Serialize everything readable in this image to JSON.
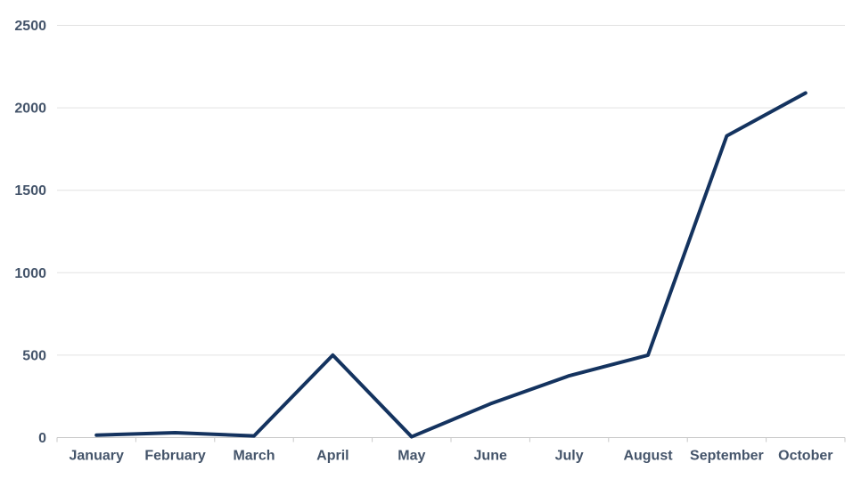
{
  "chart_data": {
    "type": "line",
    "categories": [
      "January",
      "February",
      "March",
      "April",
      "May",
      "June",
      "July",
      "August",
      "September",
      "October"
    ],
    "series": [
      {
        "name": "monthly-values",
        "values": [
          15,
          30,
          10,
          500,
          5,
          205,
          375,
          500,
          1830,
          2090
        ]
      }
    ],
    "title": "",
    "xlabel": "",
    "ylabel": "",
    "ylim": [
      0,
      2500
    ],
    "yticks": [
      0,
      500,
      1000,
      1500,
      2000,
      2500
    ],
    "grid": true,
    "legend": false,
    "colors": {
      "line": "#14335f",
      "labels": "#44546a",
      "gridline": "#e2e2e2",
      "axis": "#c8c8c8",
      "background": "#ffffff"
    }
  }
}
